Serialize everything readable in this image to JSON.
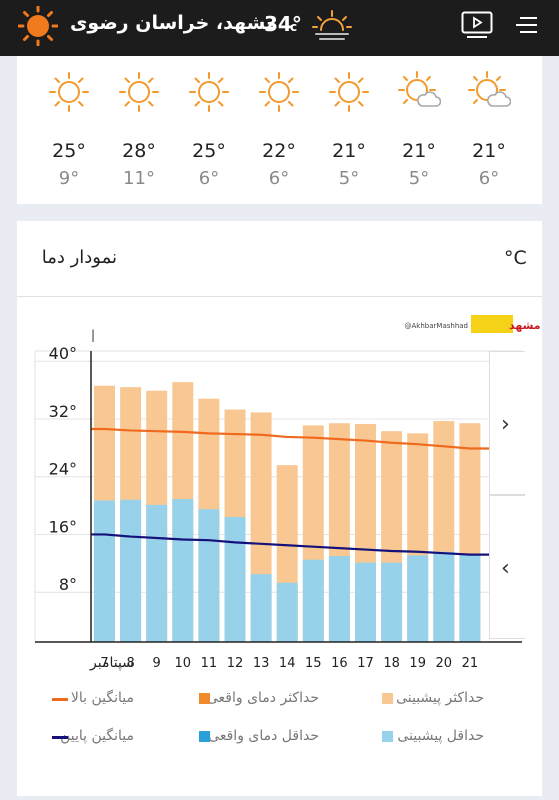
{
  "header": {
    "city": "مشهد، خراسان رضوی",
    "temperature": "34°",
    "unit_symbol": "c",
    "icons": [
      "sun-icon",
      "sunset-icon",
      "tv-icon",
      "menu-icon"
    ]
  },
  "forecast": [
    {
      "hi": "25°",
      "lo": "9°",
      "icon": "sun-icon"
    },
    {
      "hi": "28°",
      "lo": "11°",
      "icon": "sun-icon"
    },
    {
      "hi": "25°",
      "lo": "6°",
      "icon": "sun-icon"
    },
    {
      "hi": "22°",
      "lo": "6°",
      "icon": "sun-icon"
    },
    {
      "hi": "21°",
      "lo": "5°",
      "icon": "sun-icon"
    },
    {
      "hi": "21°",
      "lo": "5°",
      "icon": "partly-cloudy-icon"
    },
    {
      "hi": "21°",
      "lo": "6°",
      "icon": "partly-cloudy-icon"
    }
  ],
  "chart_card": {
    "title": "نمودار دما",
    "unit": "°C",
    "watermark": "@AkhbarMashhad",
    "logo_text": "اخبار مشهد",
    "nav_next": "›",
    "nav_prev": "‹"
  },
  "colors": {
    "forecast_max": "#f9c892",
    "forecast_min": "#97d1ea",
    "avg_high": "#ef6a1f",
    "avg_low": "#14127a",
    "actual_max": "#f08a2c",
    "actual_min": "#2a9fd8",
    "sun": "#f29a2e"
  },
  "chart_data": {
    "type": "bar",
    "marker": "|",
    "x_axis_label": "سپتامبر",
    "categories": [
      "7",
      "8",
      "9",
      "10",
      "11",
      "12",
      "13",
      "14",
      "15",
      "16",
      "17",
      "18",
      "19",
      "20",
      "21"
    ],
    "y_ticks": [
      "40°",
      "32°",
      "24°",
      "16°",
      "8°"
    ],
    "ylim": [
      0,
      44
    ],
    "series": [
      {
        "name": "حداکثر پیشبینی",
        "kind": "bar",
        "values": [
          35.5,
          35.3,
          34.8,
          36,
          33.7,
          32.2,
          31.8,
          24.5,
          30,
          30.3,
          30.2,
          29.2,
          28.9,
          30.6,
          30.3
        ]
      },
      {
        "name": "حداقل پیشبینی",
        "kind": "bar",
        "values": [
          19.6,
          19.7,
          19,
          19.8,
          18.4,
          17.3,
          9.4,
          8.2,
          11.4,
          11.9,
          11,
          11,
          12,
          12.5,
          12.2
        ]
      },
      {
        "name": "میانگین بالا",
        "kind": "line",
        "values": [
          29.5,
          29.3,
          29.2,
          29.1,
          28.9,
          28.8,
          28.7,
          28.4,
          28.3,
          28.1,
          27.9,
          27.6,
          27.4,
          27.1,
          26.8
        ]
      },
      {
        "name": "میانگین پایین",
        "kind": "line",
        "values": [
          14.9,
          14.6,
          14.4,
          14.2,
          14.1,
          13.8,
          13.6,
          13.4,
          13.2,
          13,
          12.8,
          12.6,
          12.5,
          12.3,
          12.1
        ]
      }
    ],
    "legend": [
      {
        "label": "حداکثر پیشبینی",
        "swatch": "square",
        "color": "#f9c892"
      },
      {
        "label": "حداکثر دمای واقعی",
        "swatch": "square",
        "color": "#f08a2c"
      },
      {
        "label": "میانگین بالا",
        "swatch": "line",
        "color": "#ef6a1f"
      },
      {
        "label": "حداقل پیشبینی",
        "swatch": "square",
        "color": "#97d1ea"
      },
      {
        "label": "حداقل دمای واقعی",
        "swatch": "square",
        "color": "#2a9fd8"
      },
      {
        "label": "میانگین پایین",
        "swatch": "line",
        "color": "#14127a"
      }
    ]
  }
}
